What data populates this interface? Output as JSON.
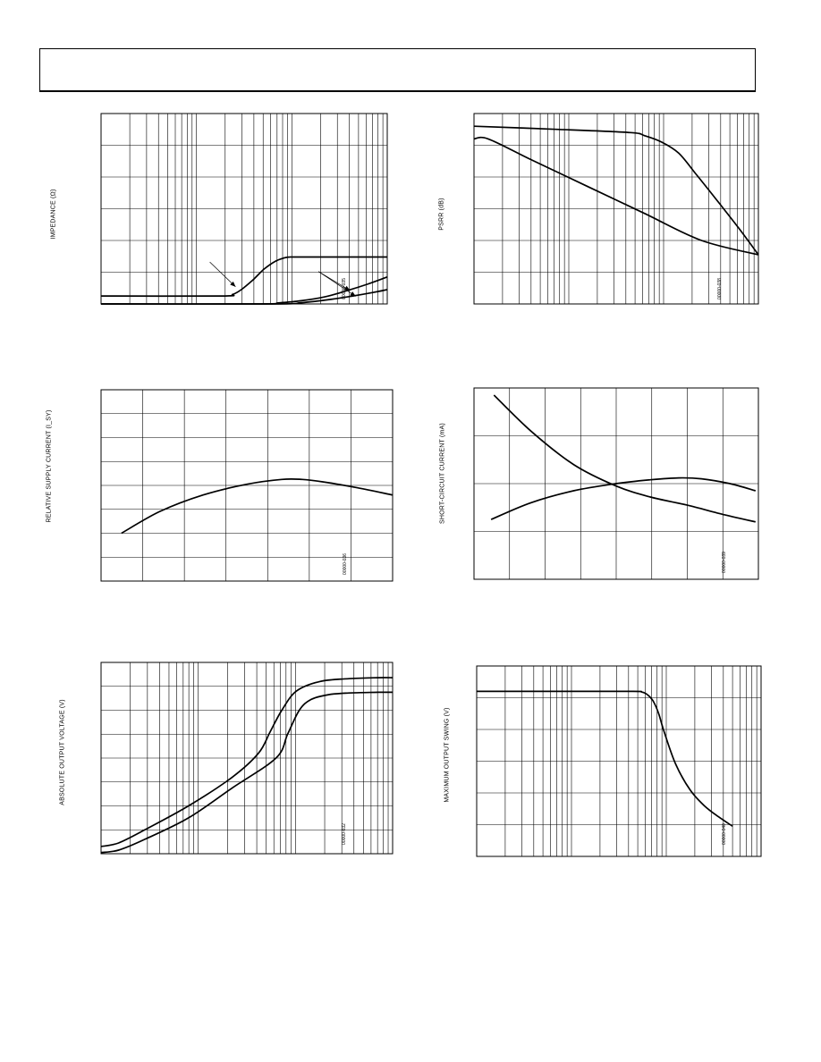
{
  "colors": {
    "line": "#000000",
    "grid": "#000000",
    "background": "#ffffff"
  },
  "chart_data": [
    {
      "type": "line",
      "x_scale": "log",
      "grid": true,
      "ylabel": "IMPEDANCE (Ω)",
      "fig_id": "00000-035",
      "xlim": [
        0,
        1
      ],
      "ylim": [
        0,
        6
      ],
      "series": [
        {
          "x": [
            0,
            0.42,
            0.46,
            0.49,
            0.53,
            0.57,
            0.61,
            0.64,
            0.66,
            0.7,
            1
          ],
          "y": [
            0.25,
            0.25,
            0.3,
            0.45,
            0.75,
            1.1,
            1.35,
            1.45,
            1.48,
            1.48,
            1.48
          ]
        },
        {
          "x": [
            0,
            0.55,
            0.62,
            0.7,
            0.78,
            0.86,
            0.93,
            1
          ],
          "y": [
            0,
            0,
            0.03,
            0.1,
            0.22,
            0.42,
            0.62,
            0.85
          ]
        },
        {
          "x": [
            0,
            0.6,
            0.7,
            0.8,
            0.88,
            0.95,
            1
          ],
          "y": [
            0,
            0,
            0.04,
            0.14,
            0.25,
            0.36,
            0.45
          ]
        }
      ],
      "annotations": [
        "arrow-left",
        "arrow-right-upper",
        "arrow-right-lower"
      ]
    },
    {
      "type": "line",
      "x_scale": "log",
      "grid": true,
      "ylabel": "PSRR (dB)",
      "fig_id": "00000-038",
      "xlim": [
        0,
        1
      ],
      "ylim": [
        0,
        6
      ],
      "series": [
        {
          "x": [
            0,
            0.3,
            0.55,
            0.6,
            0.66,
            0.72,
            0.78,
            0.86,
            0.93,
            1
          ],
          "y": [
            5.6,
            5.5,
            5.4,
            5.3,
            5.1,
            4.75,
            4.1,
            3.2,
            2.4,
            1.55
          ]
        },
        {
          "x": [
            0,
            0.05,
            0.2,
            0.4,
            0.6,
            0.8,
            1
          ],
          "y": [
            5.2,
            5.2,
            4.55,
            3.7,
            2.85,
            2.0,
            1.55
          ]
        }
      ]
    },
    {
      "type": "line",
      "grid": true,
      "ylabel": "RELATIVE SUPPLY CURRENT (I_SY)",
      "fig_id": "00000-036",
      "xlim": [
        0,
        1
      ],
      "ylim": [
        0,
        8
      ],
      "series": [
        {
          "x": [
            0.07,
            0.2,
            0.35,
            0.5,
            0.62,
            0.69,
            0.76,
            0.88,
            1
          ],
          "y": [
            2.0,
            2.9,
            3.6,
            4.05,
            4.25,
            4.25,
            4.15,
            3.9,
            3.6
          ]
        }
      ]
    },
    {
      "type": "line",
      "grid": true,
      "ylabel": "SHORT-CIRCUIT CURRENT (mA)",
      "fig_id": "00000-039",
      "xlim": [
        0,
        1
      ],
      "ylim": [
        0,
        4
      ],
      "series": [
        {
          "x": [
            0.07,
            0.2,
            0.35,
            0.5,
            0.62,
            0.75,
            0.88,
            0.99
          ],
          "y": [
            3.85,
            3.1,
            2.4,
            1.95,
            1.72,
            1.55,
            1.35,
            1.2
          ]
        },
        {
          "x": [
            0.06,
            0.2,
            0.35,
            0.5,
            0.62,
            0.72,
            0.8,
            0.9,
            0.99
          ],
          "y": [
            1.25,
            1.6,
            1.85,
            2.0,
            2.08,
            2.12,
            2.1,
            2.0,
            1.85
          ]
        }
      ]
    },
    {
      "type": "line",
      "x_scale": "log",
      "grid": true,
      "ylabel": "ABSOLUTE OUTPUT VOLTAGE (V)",
      "fig_id": "00000-032",
      "xlim": [
        0,
        1
      ],
      "ylim": [
        0,
        8
      ],
      "series": [
        {
          "x": [
            0,
            0.06,
            0.15,
            0.3,
            0.45,
            0.54,
            0.58,
            0.62,
            0.67,
            0.75,
            0.85,
            0.95,
            1
          ],
          "y": [
            0.3,
            0.45,
            1.0,
            2.0,
            3.2,
            4.2,
            5.1,
            6.0,
            6.8,
            7.2,
            7.32,
            7.36,
            7.36
          ]
        },
        {
          "x": [
            0,
            0.06,
            0.15,
            0.3,
            0.45,
            0.6,
            0.64,
            0.68,
            0.72,
            0.78,
            0.85,
            0.95,
            1
          ],
          "y": [
            0.05,
            0.15,
            0.6,
            1.5,
            2.75,
            4.0,
            5.0,
            6.0,
            6.45,
            6.65,
            6.72,
            6.75,
            6.75
          ]
        }
      ]
    },
    {
      "type": "line",
      "x_scale": "log",
      "grid": true,
      "ylabel": "MAXIMUM OUTPUT SWING (V)",
      "fig_id": "00000-040",
      "xlim": [
        0,
        1
      ],
      "ylim": [
        0,
        6
      ],
      "series": [
        {
          "x": [
            0,
            0.3,
            0.55,
            0.58,
            0.6,
            0.62,
            0.64,
            0.66,
            0.7,
            0.75,
            0.8,
            0.85,
            0.9
          ],
          "y": [
            5.2,
            5.2,
            5.2,
            5.18,
            5.1,
            4.9,
            4.5,
            3.9,
            2.9,
            2.1,
            1.6,
            1.25,
            0.95
          ]
        }
      ]
    }
  ]
}
